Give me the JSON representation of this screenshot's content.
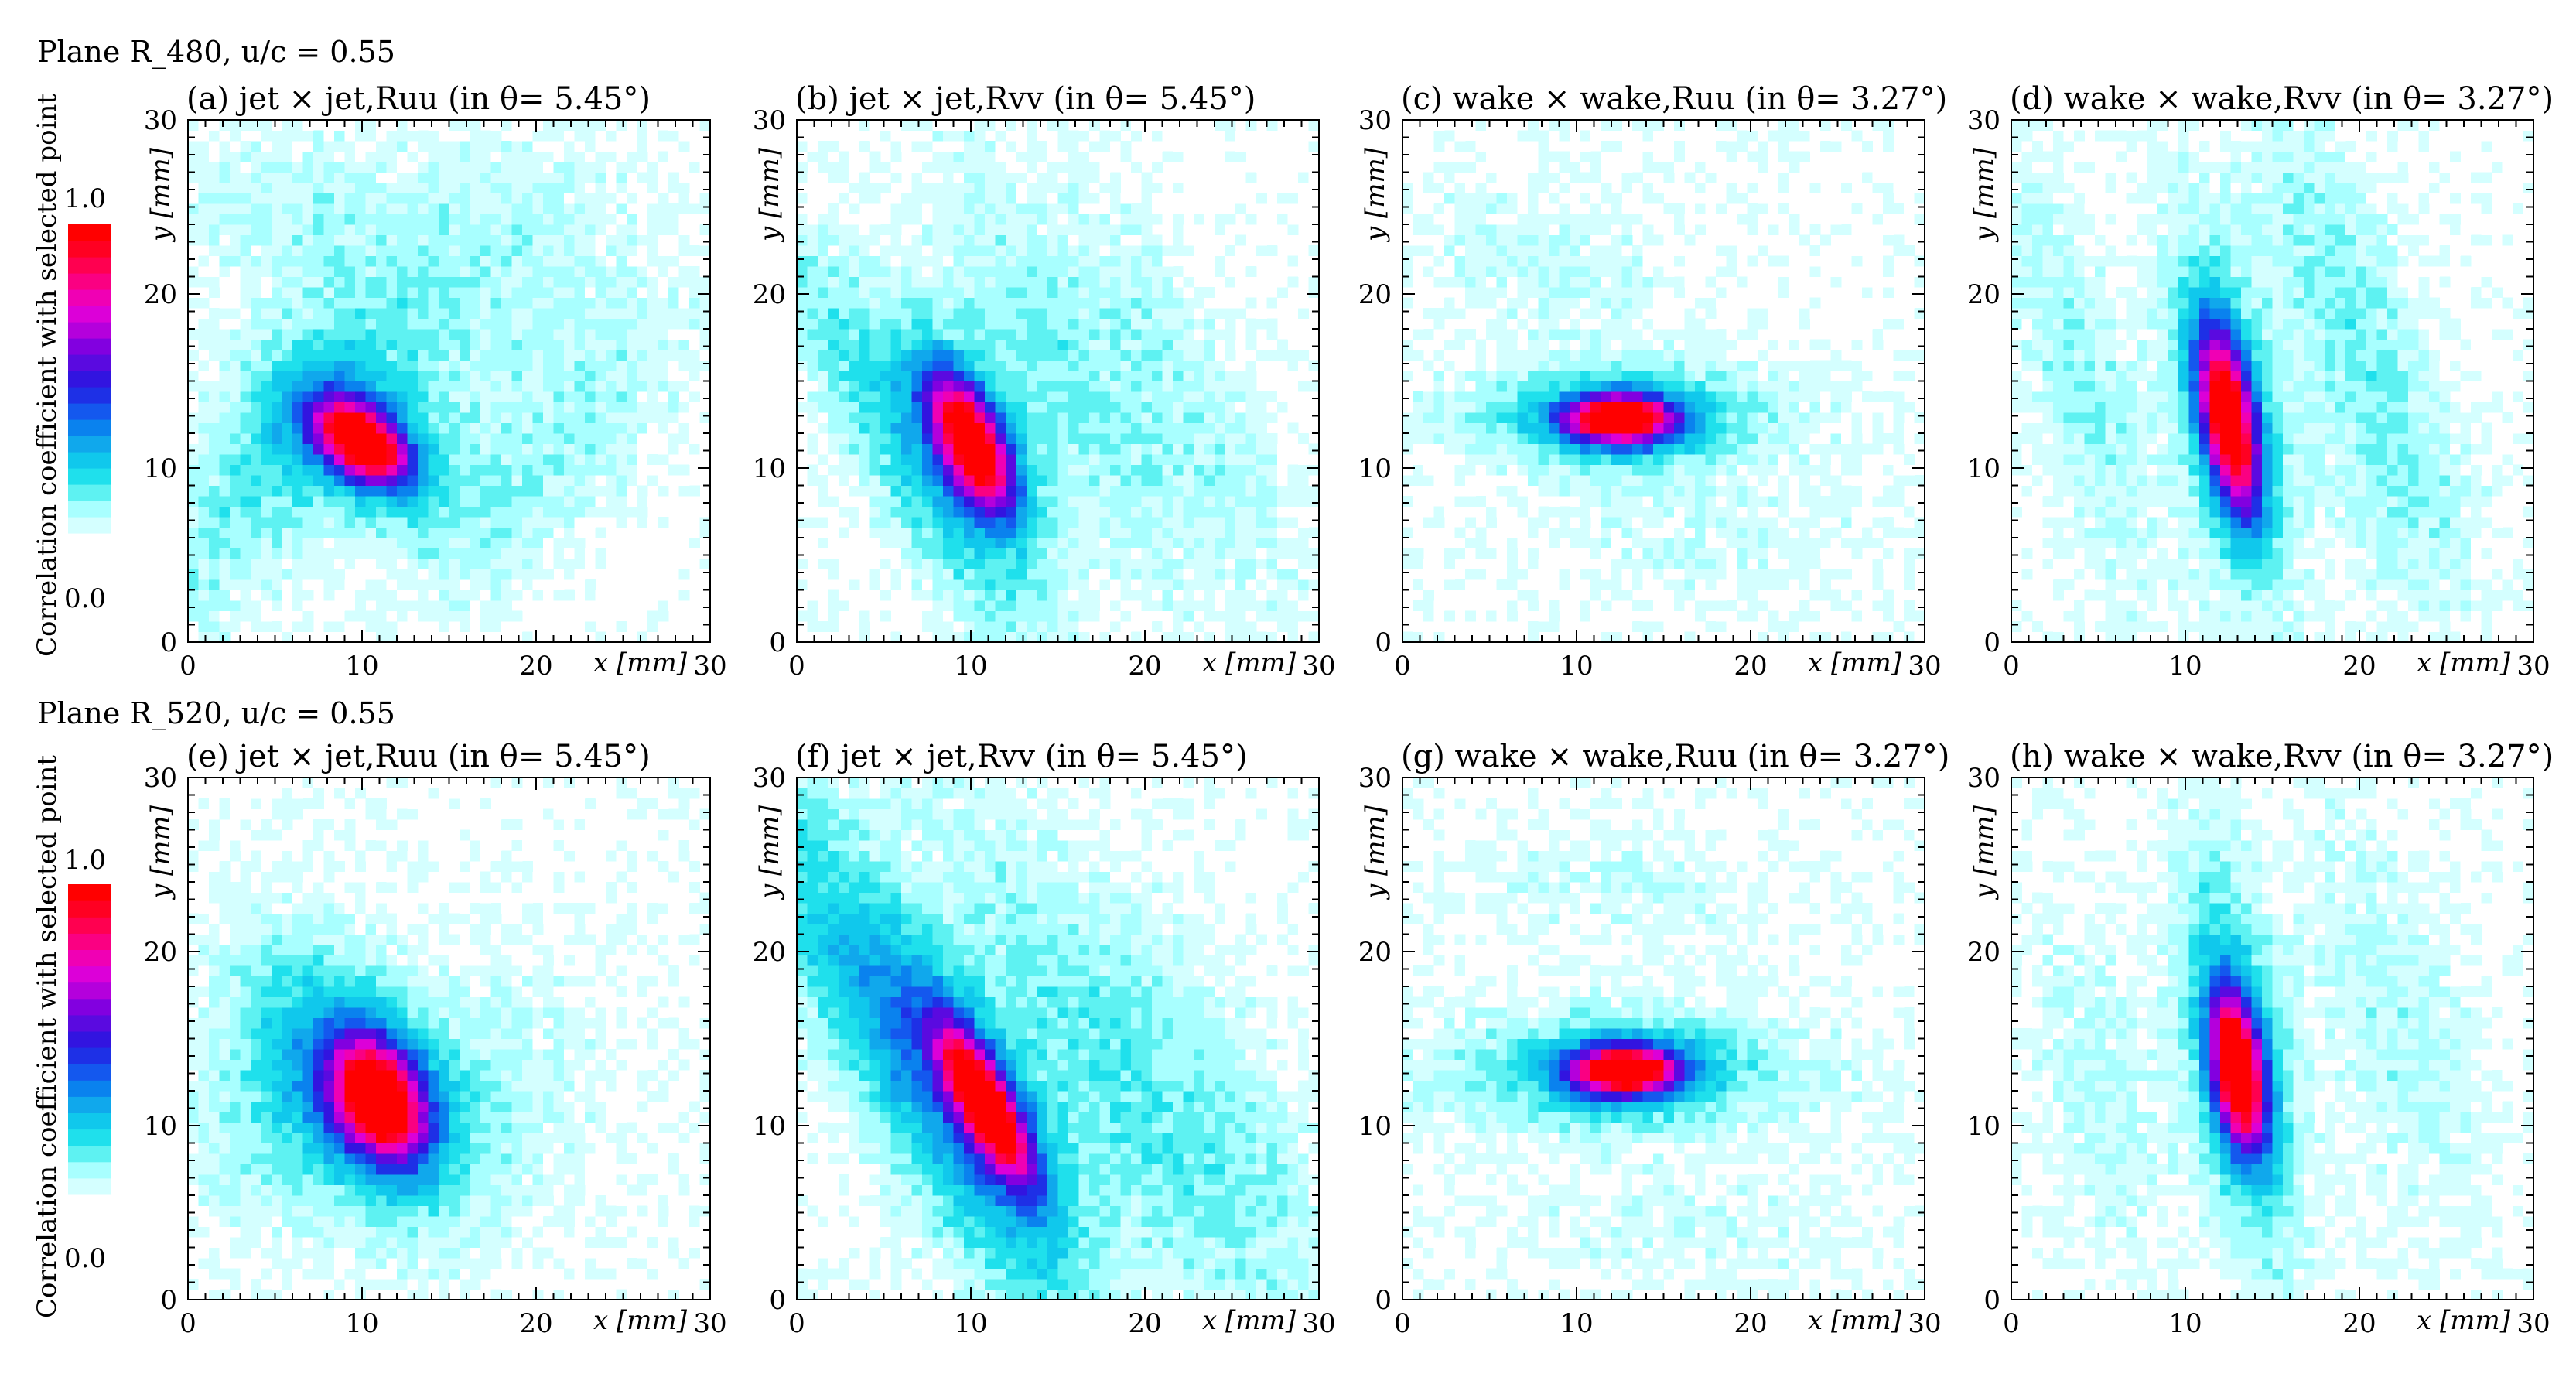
{
  "figure": {
    "colorbar": {
      "label": "Correlation coefficient with selected point",
      "max_label": "1.0",
      "min_label": "0.0",
      "colors": [
        "#ffffff",
        "#d4ffff",
        "#a8ffff",
        "#5ef2f2",
        "#1fe0ec",
        "#10c8ec",
        "#10a8ec",
        "#0a82ee",
        "#1458ee",
        "#1e30e6",
        "#3214e0",
        "#5a0ae0",
        "#8200e0",
        "#b400dc",
        "#dc00d8",
        "#f000b4",
        "#fa0082",
        "#ff0050",
        "#ff0022",
        "#ff0000"
      ]
    },
    "shared_axes": {
      "x_label": "x [mm]",
      "y_label": "y [mm]",
      "xlim": [
        0,
        30
      ],
      "ylim": [
        0,
        30
      ],
      "ticks": [
        "0",
        "10",
        "20",
        "30"
      ]
    }
  },
  "chart_data": [
    {
      "type": "heatmap",
      "row_title": "Plane R_480, u/c = 0.55",
      "title": "(a) jet × jet,Ruu (in θ= 5.45°)",
      "peak": {
        "x": 10,
        "y": 11.5
      },
      "core": {
        "sx": 2.0,
        "sy": 1.2,
        "angle": -40
      },
      "bands": [
        {
          "x": 4.5,
          "y": 10,
          "sx": 3.0,
          "sy": 8.0,
          "angle": -35,
          "amp": 0.14
        },
        {
          "x": 16,
          "y": 20,
          "sx": 4.5,
          "sy": 7.5,
          "angle": -45,
          "amp": 0.1
        },
        {
          "x": 21,
          "y": 11,
          "sx": 3.0,
          "sy": 8.0,
          "angle": -40,
          "amp": 0.1
        },
        {
          "x": 6,
          "y": 25,
          "sx": 5.0,
          "sy": 3.0,
          "angle": 0,
          "amp": 0.08
        }
      ]
    },
    {
      "type": "heatmap",
      "title": "(b) jet × jet,Rvv (in θ= 5.45°)",
      "peak": {
        "x": 10,
        "y": 11.5
      },
      "core": {
        "sx": 1.2,
        "sy": 2.8,
        "angle": 25
      },
      "bands": [
        {
          "x": 5,
          "y": 13,
          "sx": 2.0,
          "sy": 11.0,
          "angle": 30,
          "amp": 0.15
        },
        {
          "x": 15,
          "y": 16,
          "sx": 2.0,
          "sy": 10.0,
          "angle": 28,
          "amp": 0.12
        },
        {
          "x": 22,
          "y": 14,
          "sx": 2.5,
          "sy": 10.0,
          "angle": 28,
          "amp": 0.1
        }
      ]
    },
    {
      "type": "heatmap",
      "title": "(c) wake × wake,Ruu (in θ= 3.27°)",
      "peak": {
        "x": 12.5,
        "y": 12.8
      },
      "core": {
        "sx": 2.0,
        "sy": 0.9,
        "angle": 0
      },
      "bands": [
        {
          "x": 12,
          "y": 13,
          "sx": 9.0,
          "sy": 2.0,
          "angle": 0,
          "amp": 0.1
        },
        {
          "x": 8,
          "y": 22,
          "sx": 6.0,
          "sy": 3.0,
          "angle": -15,
          "amp": 0.07
        },
        {
          "x": 18,
          "y": 6,
          "sx": 7.0,
          "sy": 2.5,
          "angle": 0,
          "amp": 0.06
        }
      ]
    },
    {
      "type": "heatmap",
      "title": "(d) wake × wake,Rvv (in θ= 3.27°)",
      "peak": {
        "x": 12.5,
        "y": 12.8
      },
      "core": {
        "sx": 1.0,
        "sy": 3.6,
        "angle": 10
      },
      "bands": [
        {
          "x": 4,
          "y": 15,
          "sx": 2.0,
          "sy": 9.0,
          "angle": 15,
          "amp": 0.12
        },
        {
          "x": 19,
          "y": 20,
          "sx": 2.5,
          "sy": 8.0,
          "angle": 18,
          "amp": 0.13
        },
        {
          "x": 23,
          "y": 8,
          "sx": 3.0,
          "sy": 5.0,
          "angle": 15,
          "amp": 0.08
        }
      ]
    },
    {
      "type": "heatmap",
      "row_title": "Plane R_520, u/c = 0.55",
      "title": "(e) jet × jet,Ruu (in θ= 5.45°)",
      "peak": {
        "x": 11,
        "y": 11.5
      },
      "core": {
        "sx": 1.6,
        "sy": 2.4,
        "angle": 25
      },
      "bands": [
        {
          "x": 7,
          "y": 15,
          "sx": 3.0,
          "sy": 5.0,
          "angle": 30,
          "amp": 0.15
        },
        {
          "x": 4,
          "y": 9,
          "sx": 4.0,
          "sy": 4.0,
          "angle": 0,
          "amp": 0.09
        },
        {
          "x": 18,
          "y": 12,
          "sx": 4.0,
          "sy": 6.0,
          "angle": -30,
          "amp": 0.07
        }
      ]
    },
    {
      "type": "heatmap",
      "title": "(f) jet × jet,Rvv (in θ= 5.45°)",
      "peak": {
        "x": 10.8,
        "y": 11.3
      },
      "core": {
        "sx": 1.0,
        "sy": 3.2,
        "angle": 28
      },
      "bands": [
        {
          "x": 3,
          "y": 20,
          "sx": 3.0,
          "sy": 12.0,
          "angle": 30,
          "amp": 0.16
        },
        {
          "x": 9,
          "y": 9,
          "sx": 2.5,
          "sy": 12.0,
          "angle": 28,
          "amp": 0.14
        },
        {
          "x": 17,
          "y": 14,
          "sx": 3.0,
          "sy": 12.0,
          "angle": 28,
          "amp": 0.14
        },
        {
          "x": 25,
          "y": 10,
          "sx": 3.0,
          "sy": 10.0,
          "angle": 25,
          "amp": 0.1
        }
      ]
    },
    {
      "type": "heatmap",
      "title": "(g) wake × wake,Ruu (in θ= 3.27°)",
      "peak": {
        "x": 12.8,
        "y": 13.2
      },
      "core": {
        "sx": 2.0,
        "sy": 0.9,
        "angle": 0
      },
      "bands": [
        {
          "x": 12,
          "y": 13,
          "sx": 10.0,
          "sy": 2.5,
          "angle": 0,
          "amp": 0.11
        },
        {
          "x": 12,
          "y": 24,
          "sx": 7.0,
          "sy": 2.5,
          "angle": 0,
          "amp": 0.06
        },
        {
          "x": 16,
          "y": 4,
          "sx": 7.0,
          "sy": 2.5,
          "angle": 0,
          "amp": 0.06
        }
      ]
    },
    {
      "type": "heatmap",
      "title": "(h) wake × wake,Rvv (in θ= 3.27°)",
      "peak": {
        "x": 13,
        "y": 13.2
      },
      "core": {
        "sx": 0.9,
        "sy": 2.8,
        "angle": 8
      },
      "bands": [
        {
          "x": 13,
          "y": 15,
          "sx": 1.6,
          "sy": 10.0,
          "angle": 10,
          "amp": 0.13
        },
        {
          "x": 5,
          "y": 12,
          "sx": 2.5,
          "sy": 8.0,
          "angle": 12,
          "amp": 0.08
        },
        {
          "x": 22,
          "y": 16,
          "sx": 3.0,
          "sy": 9.0,
          "angle": 15,
          "amp": 0.09
        }
      ]
    }
  ]
}
